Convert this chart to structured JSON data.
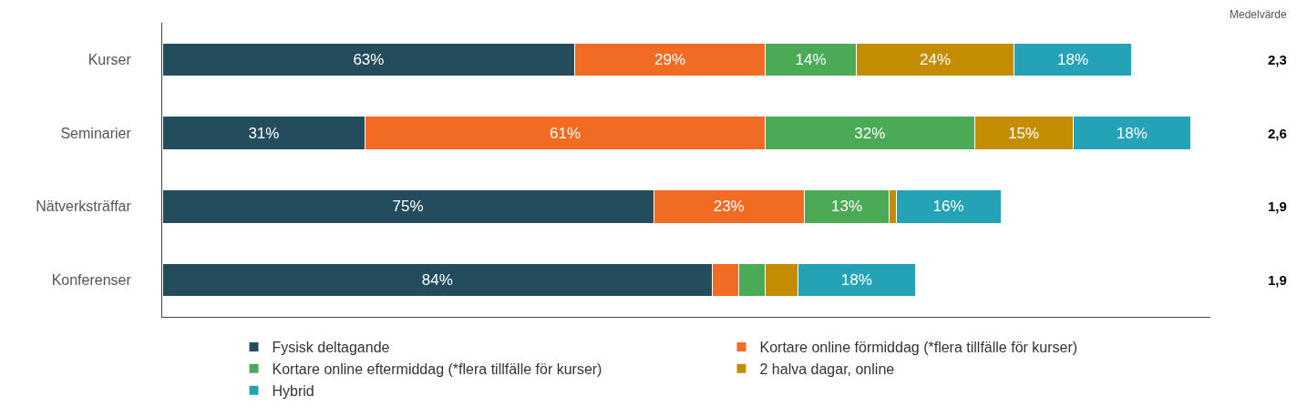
{
  "chart_data": {
    "type": "bar",
    "orientation": "horizontal",
    "stacked": true,
    "categories": [
      "Kurser",
      "Seminarier",
      "Nätverksträffar",
      "Konferenser"
    ],
    "series": [
      {
        "name": "Fysisk deltagande",
        "color": "#234d5c",
        "values": [
          63,
          31,
          75,
          84
        ],
        "value_labels": [
          "63%",
          "31%",
          "75%",
          "84%"
        ]
      },
      {
        "name": "Kortare online förmiddag (*flera tillfälle för kurser)",
        "color": "#f26b22",
        "values": [
          29,
          61,
          23,
          4
        ],
        "value_labels": [
          "29%",
          "61%",
          "23%",
          null
        ]
      },
      {
        "name": "Kortare online eftermiddag (*flera tillfälle för kurser)",
        "color": "#4aaa55",
        "values": [
          14,
          32,
          13,
          4
        ],
        "value_labels": [
          "14%",
          "32%",
          "13%",
          null
        ]
      },
      {
        "name": "2 halva dagar, online",
        "color": "#c48c00",
        "values": [
          24,
          15,
          1,
          5
        ],
        "value_labels": [
          "24%",
          "15%",
          null,
          null
        ]
      },
      {
        "name": "Hybrid",
        "color": "#23a3b5",
        "values": [
          18,
          18,
          16,
          18
        ],
        "value_labels": [
          "18%",
          "18%",
          "16%",
          "18%"
        ]
      }
    ],
    "xlim": [
      0,
      160
    ],
    "legend": "bottom",
    "tick_labels": "y",
    "annotations": [
      "Medelvärde",
      "2,3",
      "2,6",
      "1,9",
      "1,9"
    ]
  }
}
